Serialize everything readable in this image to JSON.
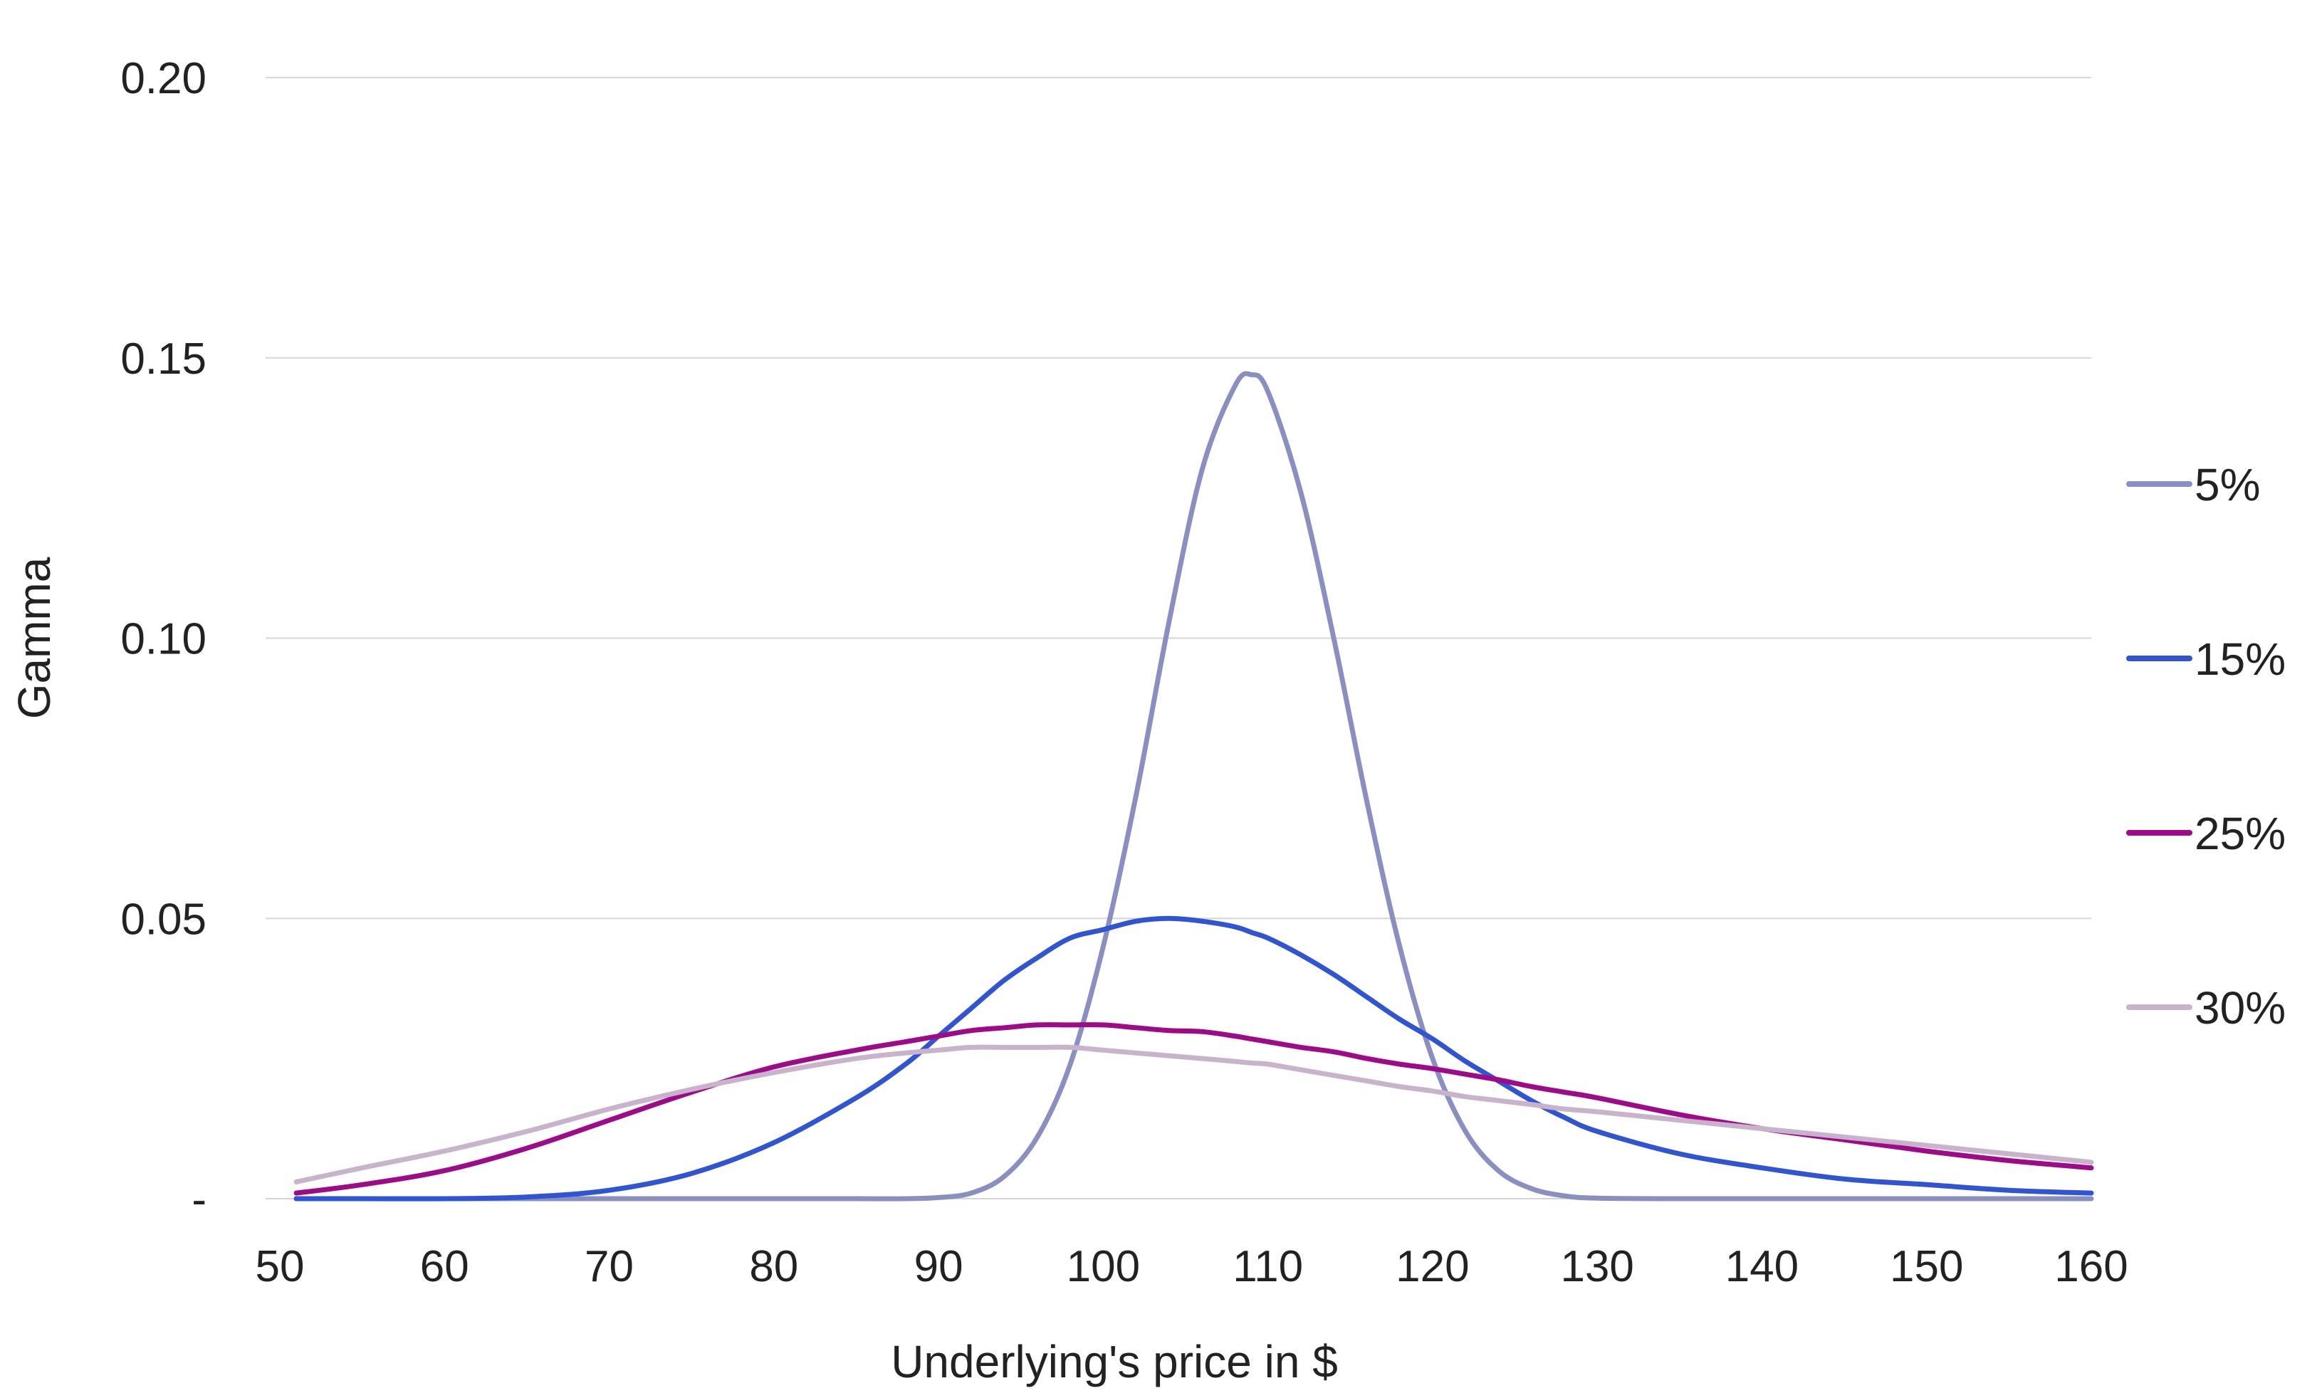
{
  "chart_data": {
    "type": "line",
    "title": "",
    "xlabel": "Underlying's price in $",
    "ylabel": "Gamma",
    "xlim": [
      50,
      160
    ],
    "ylim": [
      0,
      0.2
    ],
    "x_ticks": [
      50,
      60,
      70,
      80,
      90,
      100,
      110,
      120,
      130,
      140,
      150,
      160
    ],
    "x_tick_labels": [
      "50",
      "60",
      "70",
      "80",
      "90",
      "100",
      "110",
      "120",
      "130",
      "140",
      "150",
      "160"
    ],
    "y_ticks": [
      0,
      0.05,
      0.1,
      0.15,
      0.2
    ],
    "y_tick_labels": [
      "-",
      "0.05",
      "0.10",
      "0.15",
      "0.20"
    ],
    "grid": "horizontal",
    "legend_position": "right",
    "x": [
      51,
      55,
      60,
      65,
      70,
      75,
      80,
      85,
      88,
      90,
      92,
      94,
      96,
      98,
      100,
      102,
      104,
      106,
      108,
      109,
      110,
      112,
      114,
      116,
      118,
      120,
      122,
      124,
      126,
      128,
      130,
      135,
      140,
      145,
      150,
      155,
      160
    ],
    "series": [
      {
        "name": "5%",
        "color": "#8a8fc2",
        "values": [
          0,
          0,
          0,
          0,
          0,
          0,
          0,
          0,
          0,
          0.0002,
          0.001,
          0.004,
          0.011,
          0.024,
          0.045,
          0.072,
          0.103,
          0.13,
          0.145,
          0.147,
          0.144,
          0.126,
          0.1,
          0.071,
          0.045,
          0.025,
          0.012,
          0.005,
          0.0018,
          0.0005,
          0.0001,
          0,
          0,
          0,
          0,
          0,
          0
        ]
      },
      {
        "name": "15%",
        "color": "#2f55d4",
        "values": [
          0,
          0,
          0,
          0.0003,
          0.0015,
          0.0045,
          0.01,
          0.018,
          0.024,
          0.029,
          0.034,
          0.039,
          0.043,
          0.0465,
          0.048,
          0.0495,
          0.05,
          0.0495,
          0.0485,
          0.0475,
          0.0465,
          0.0435,
          0.04,
          0.036,
          0.032,
          0.0285,
          0.0245,
          0.021,
          0.0175,
          0.0145,
          0.012,
          0.008,
          0.0055,
          0.0035,
          0.0025,
          0.0015,
          0.001
        ]
      },
      {
        "name": "25%",
        "color": "#9e0a8a",
        "values": [
          0.001,
          0.0025,
          0.005,
          0.009,
          0.014,
          0.019,
          0.0235,
          0.0265,
          0.028,
          0.029,
          0.03,
          0.0305,
          0.031,
          0.031,
          0.031,
          0.0305,
          0.03,
          0.0298,
          0.029,
          0.0285,
          0.028,
          0.027,
          0.0262,
          0.025,
          0.024,
          0.0232,
          0.0222,
          0.0212,
          0.02,
          0.019,
          0.018,
          0.015,
          0.0125,
          0.0105,
          0.0085,
          0.0068,
          0.0055
        ]
      },
      {
        "name": "30%",
        "color": "#c9b3cc",
        "values": [
          0.003,
          0.0055,
          0.0085,
          0.012,
          0.016,
          0.0195,
          0.0225,
          0.025,
          0.026,
          0.0265,
          0.027,
          0.027,
          0.027,
          0.027,
          0.0265,
          0.026,
          0.0255,
          0.025,
          0.0245,
          0.0242,
          0.024,
          0.023,
          0.022,
          0.021,
          0.02,
          0.0192,
          0.0182,
          0.0175,
          0.0168,
          0.016,
          0.0155,
          0.014,
          0.0125,
          0.011,
          0.0095,
          0.008,
          0.0065
        ]
      }
    ]
  }
}
